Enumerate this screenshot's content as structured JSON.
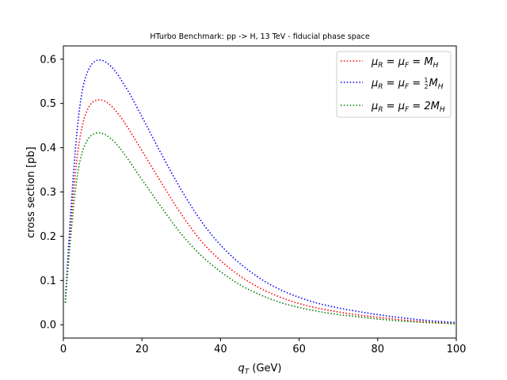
{
  "chart_data": {
    "type": "line",
    "title": "HTurbo Benchmark: pp -> H, 13 TeV - fiducial phase space",
    "xlabel_main": "q",
    "xlabel_sub": "T",
    "xlabel_unit": " (GeV)",
    "ylabel": "cross section [pb]",
    "xlim": [
      0,
      100
    ],
    "ylim": [
      -0.03,
      0.63
    ],
    "x_ticks": [
      0,
      20,
      40,
      60,
      80,
      100
    ],
    "y_ticks": [
      0.0,
      0.1,
      0.2,
      0.3,
      0.4,
      0.5,
      0.6
    ],
    "grid": false,
    "legend_position": "top-right",
    "x": [
      0.5,
      1,
      2,
      3,
      4,
      5,
      6,
      7,
      8,
      9,
      10,
      11,
      12,
      13,
      14,
      15,
      17,
      20,
      25,
      30,
      35,
      40,
      45,
      50,
      55,
      60,
      65,
      70,
      75,
      80,
      85,
      90,
      95,
      100
    ],
    "series": [
      {
        "name_parts": [
          "μ",
          "R",
          " = μ",
          "F",
          " = M",
          "H"
        ],
        "color": "#ff0000",
        "values": [
          0.05,
          0.12,
          0.24,
          0.34,
          0.41,
          0.456,
          0.483,
          0.499,
          0.506,
          0.508,
          0.507,
          0.503,
          0.496,
          0.487,
          0.476,
          0.464,
          0.437,
          0.393,
          0.32,
          0.25,
          0.19,
          0.145,
          0.11,
          0.083,
          0.063,
          0.048,
          0.037,
          0.029,
          0.022,
          0.017,
          0.012,
          0.008,
          0.005,
          0.003
        ]
      },
      {
        "name_parts": [
          "μ",
          "R",
          " = μ",
          "F",
          " = ",
          "1",
          "2",
          "M",
          "H"
        ],
        "color": "#0000ff",
        "values": [
          0.05,
          0.13,
          0.27,
          0.39,
          0.48,
          0.537,
          0.568,
          0.586,
          0.595,
          0.598,
          0.597,
          0.592,
          0.585,
          0.575,
          0.563,
          0.549,
          0.52,
          0.47,
          0.385,
          0.305,
          0.235,
          0.18,
          0.138,
          0.105,
          0.08,
          0.062,
          0.048,
          0.038,
          0.03,
          0.023,
          0.017,
          0.012,
          0.008,
          0.005
        ]
      },
      {
        "name_parts": [
          "μ",
          "R",
          " = μ",
          "F",
          " = 2M",
          "H"
        ],
        "color": "#008000",
        "values": [
          0.05,
          0.11,
          0.21,
          0.3,
          0.36,
          0.395,
          0.415,
          0.427,
          0.432,
          0.434,
          0.432,
          0.428,
          0.421,
          0.413,
          0.403,
          0.392,
          0.367,
          0.328,
          0.265,
          0.205,
          0.157,
          0.12,
          0.09,
          0.068,
          0.051,
          0.039,
          0.03,
          0.023,
          0.018,
          0.013,
          0.009,
          0.006,
          0.004,
          0.002
        ]
      }
    ]
  }
}
